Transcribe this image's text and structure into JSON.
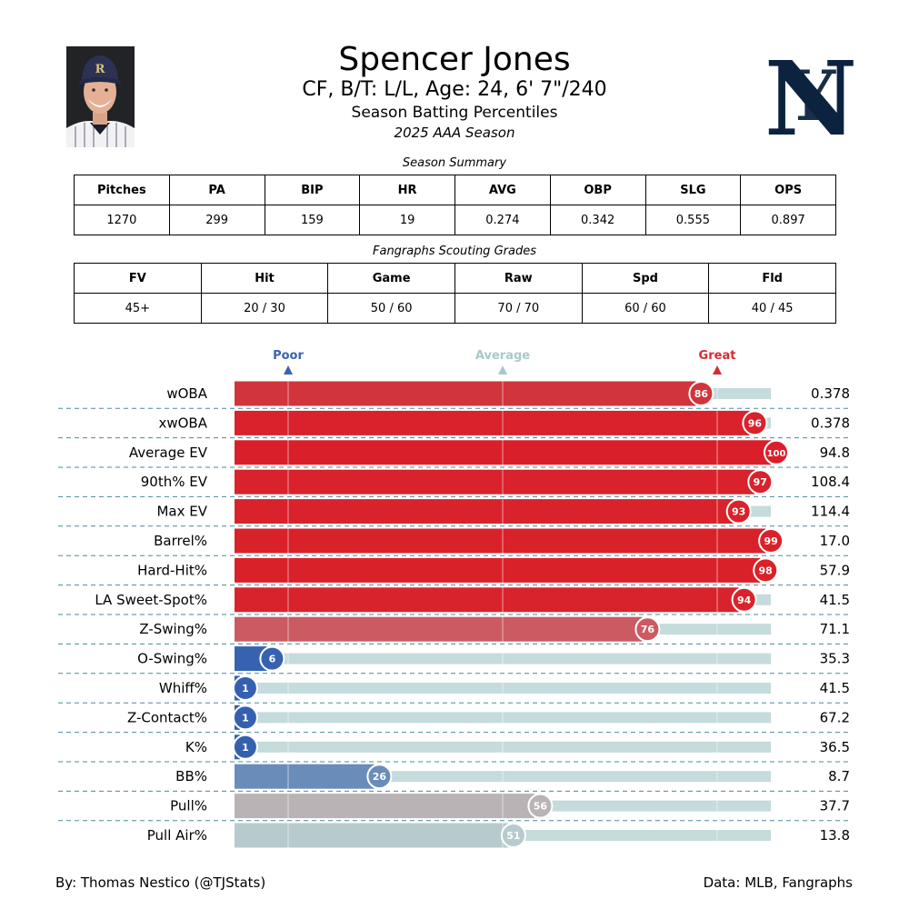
{
  "header": {
    "name": "Spencer Jones",
    "bio": "CF, B/T: L/L, Age: 24, 6' 7\"/240",
    "subtitle": "Season Batting Percentiles",
    "season": "2025 AAA Season"
  },
  "summary": {
    "title": "Season Summary",
    "headers": [
      "Pitches",
      "PA",
      "BIP",
      "HR",
      "AVG",
      "OBP",
      "SLG",
      "OPS"
    ],
    "values": [
      "1270",
      "299",
      "159",
      "19",
      "0.274",
      "0.342",
      "0.555",
      "0.897"
    ]
  },
  "grades": {
    "title": "Fangraphs Scouting Grades",
    "headers": [
      "FV",
      "Hit",
      "Game",
      "Raw",
      "Spd",
      "Fld"
    ],
    "values": [
      "45+",
      "20 / 30",
      "50 / 60",
      "70 / 70",
      "60 / 60",
      "40 / 45"
    ]
  },
  "colors": {
    "poor": "#3a63b0",
    "average": "#a8c8cc",
    "great": "#d52b33",
    "track": "#c5dbdc",
    "divider": "#4a8a99"
  },
  "chart_data": {
    "type": "bar",
    "orientation": "horizontal",
    "xlim": [
      0,
      100
    ],
    "markers": [
      {
        "label": "Poor",
        "value": 10
      },
      {
        "label": "Average",
        "value": 50
      },
      {
        "label": "Great",
        "value": 90
      }
    ],
    "rows": [
      {
        "label": "wOBA",
        "percentile": 86,
        "value": "0.378",
        "color": "#d2343b"
      },
      {
        "label": "xwOBA",
        "percentile": 96,
        "value": "0.378",
        "color": "#d9222b"
      },
      {
        "label": "Average EV",
        "percentile": 100,
        "value": "94.8",
        "color": "#d9202a"
      },
      {
        "label": "90th% EV",
        "percentile": 97,
        "value": "108.4",
        "color": "#d9222b"
      },
      {
        "label": "Max EV",
        "percentile": 93,
        "value": "114.4",
        "color": "#d9232c"
      },
      {
        "label": "Barrel%",
        "percentile": 99,
        "value": "17.0",
        "color": "#d9212a"
      },
      {
        "label": "Hard-Hit%",
        "percentile": 98,
        "value": "57.9",
        "color": "#d9212a"
      },
      {
        "label": "LA Sweet-Spot%",
        "percentile": 94,
        "value": "41.5",
        "color": "#d9232c"
      },
      {
        "label": "Z-Swing%",
        "percentile": 76,
        "value": "71.1",
        "color": "#cc5a62"
      },
      {
        "label": "O-Swing%",
        "percentile": 6,
        "value": "35.3",
        "color": "#3762b0"
      },
      {
        "label": "Whiff%",
        "percentile": 1,
        "value": "41.5",
        "color": "#3560b0"
      },
      {
        "label": "Z-Contact%",
        "percentile": 1,
        "value": "67.2",
        "color": "#3560b0"
      },
      {
        "label": "K%",
        "percentile": 1,
        "value": "36.5",
        "color": "#3560b0"
      },
      {
        "label": "BB%",
        "percentile": 26,
        "value": "8.7",
        "color": "#6a8cb9"
      },
      {
        "label": "Pull%",
        "percentile": 56,
        "value": "37.7",
        "color": "#b9b3b6"
      },
      {
        "label": "Pull Air%",
        "percentile": 51,
        "value": "13.8",
        "color": "#b7caCD"
      }
    ]
  },
  "footer": {
    "left": "By: Thomas Nestico (@TJStats)",
    "right": "Data: MLB, Fangraphs"
  }
}
